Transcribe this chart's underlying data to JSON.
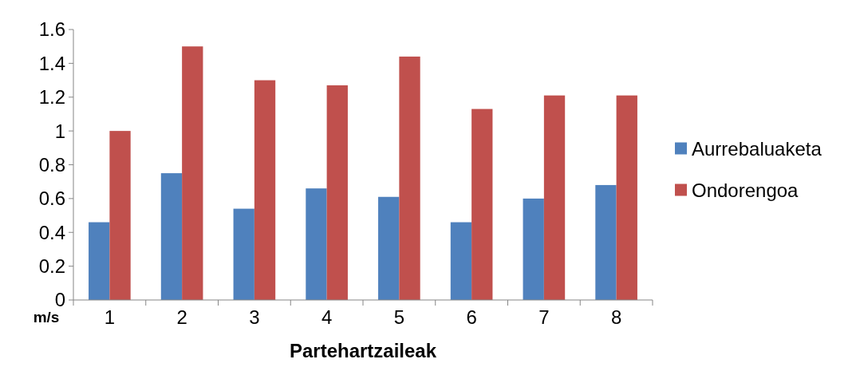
{
  "chart_data": {
    "type": "bar",
    "xlabel": "Partehartzaileak",
    "ylabel": "m/s",
    "categories": [
      "1",
      "2",
      "3",
      "4",
      "5",
      "6",
      "7",
      "8"
    ],
    "series": [
      {
        "name": "Aurrebaluaketa",
        "color": "#4f81bd",
        "values": [
          0.46,
          0.75,
          0.54,
          0.66,
          0.61,
          0.46,
          0.6,
          0.68
        ]
      },
      {
        "name": "Ondorengoa",
        "color": "#c0504d",
        "values": [
          1.0,
          1.5,
          1.3,
          1.27,
          1.44,
          1.13,
          1.21,
          1.21
        ]
      }
    ],
    "ylim": [
      0,
      1.6
    ],
    "yticks": [
      0,
      0.2,
      0.4,
      0.6,
      0.8,
      1,
      1.2,
      1.4,
      1.6
    ],
    "grid": false,
    "legend": "right"
  }
}
